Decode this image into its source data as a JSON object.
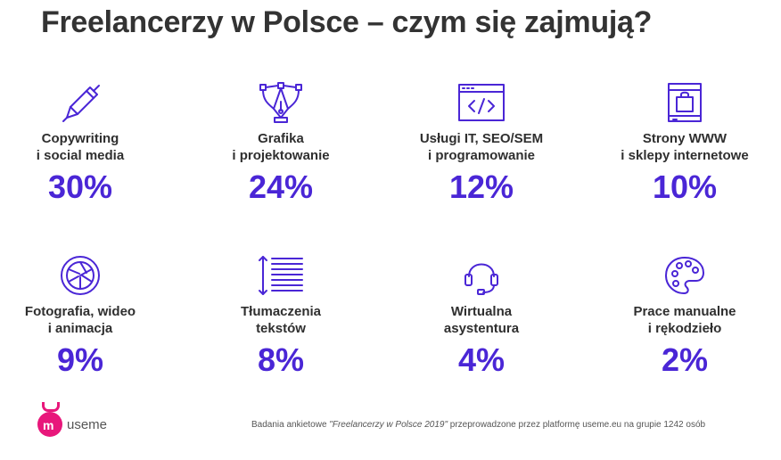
{
  "title": "Freelancerzy w Polsce – czym się zajmują?",
  "colors": {
    "accent": "#4a26d6",
    "text": "#2f2f2f",
    "logo": "#e8177b"
  },
  "chart_data": {
    "type": "table",
    "title": "Freelancerzy w Polsce – czym się zajmują?",
    "categories": [
      "Copywriting i social media",
      "Grafika i projektowanie",
      "Usługi IT, SEO/SEM i programowanie",
      "Strony WWW i sklepy internetowe",
      "Fotografia, wideo i animacja",
      "Tłumaczenia tekstów",
      "Wirtualna asystentura",
      "Prace manualne i rękodzieło"
    ],
    "values": [
      30,
      24,
      12,
      10,
      9,
      8,
      4,
      2
    ],
    "unit": "%"
  },
  "items": [
    {
      "line1": "Copywriting",
      "line2": "i social media",
      "value": "30%",
      "icon": "pen-icon"
    },
    {
      "line1": "Grafika",
      "line2": "i projektowanie",
      "value": "24%",
      "icon": "vector-pen-icon"
    },
    {
      "line1": "Usługi IT, SEO/SEM",
      "line2": "i programowanie",
      "value": "12%",
      "icon": "code-window-icon"
    },
    {
      "line1": "Strony WWW",
      "line2": "i sklepy internetowe",
      "value": "10%",
      "icon": "shopping-page-icon"
    },
    {
      "line1": "Fotografia, wideo",
      "line2": "i animacja",
      "value": "9%",
      "icon": "aperture-icon"
    },
    {
      "line1": "Tłumaczenia",
      "line2": "tekstów",
      "value": "8%",
      "icon": "text-lines-icon"
    },
    {
      "line1": "Wirtualna",
      "line2": "asystentura",
      "value": "4%",
      "icon": "headset-icon"
    },
    {
      "line1": "Prace manualne",
      "line2": "i rękodzieło",
      "value": "2%",
      "icon": "palette-icon"
    }
  ],
  "footer": {
    "logo_letters_top": "u",
    "logo_letters_bottom": "m",
    "logo_text": "useme",
    "source_prefix": "Badania ankietowe ",
    "source_title": "\"Freelancerzy w Polsce 2019\"",
    "source_suffix": " przeprowadzone przez platformę useme.eu na grupie 1242 osób"
  }
}
